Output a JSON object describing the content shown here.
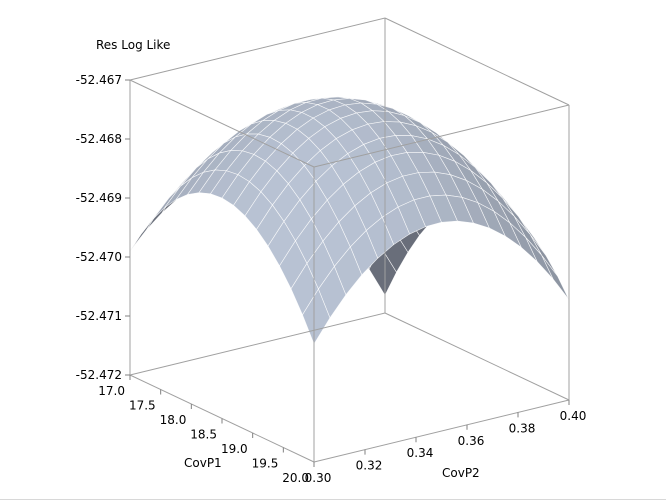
{
  "chart_data": {
    "type": "surface",
    "zlabel": "Res Log Like",
    "xlabel": "CovP1",
    "ylabel": "CovP2",
    "x_ticks": [
      "17.0",
      "17.5",
      "18.0",
      "18.5",
      "19.0",
      "19.5",
      "20.0"
    ],
    "y_ticks": [
      "0.30",
      "0.32",
      "0.34",
      "0.36",
      "0.38",
      "0.40"
    ],
    "z_ticks": [
      "-52.467",
      "-52.468",
      "-52.469",
      "-52.470",
      "-52.471",
      "-52.472"
    ],
    "xlim": [
      17,
      20
    ],
    "ylim": [
      0.3,
      0.4
    ],
    "zlim": [
      -52.472,
      -52.467
    ],
    "x": [
      17,
      17.75,
      18.5,
      19.25,
      20
    ],
    "y": [
      0.3,
      0.325,
      0.35,
      0.375,
      0.4
    ],
    "z": [
      [
        -52.4699,
        -52.469084,
        -52.469113,
        -52.469984,
        -52.4717
      ],
      [
        -52.468659,
        -52.46775,
        -52.467684,
        -52.468463,
        -52.470084
      ],
      [
        -52.468263,
        -52.467259,
        -52.4671,
        -52.467784,
        -52.469313
      ],
      [
        -52.468709,
        -52.467613,
        -52.467359,
        -52.46795,
        -52.469384
      ],
      [
        -52.47,
        -52.468809,
        -52.468463,
        -52.468959,
        -52.4703
      ]
    ],
    "colors": {
      "surface": "#b4c0d2",
      "grid_lines": "#ffffff",
      "box": "#a0a0a0"
    }
  }
}
